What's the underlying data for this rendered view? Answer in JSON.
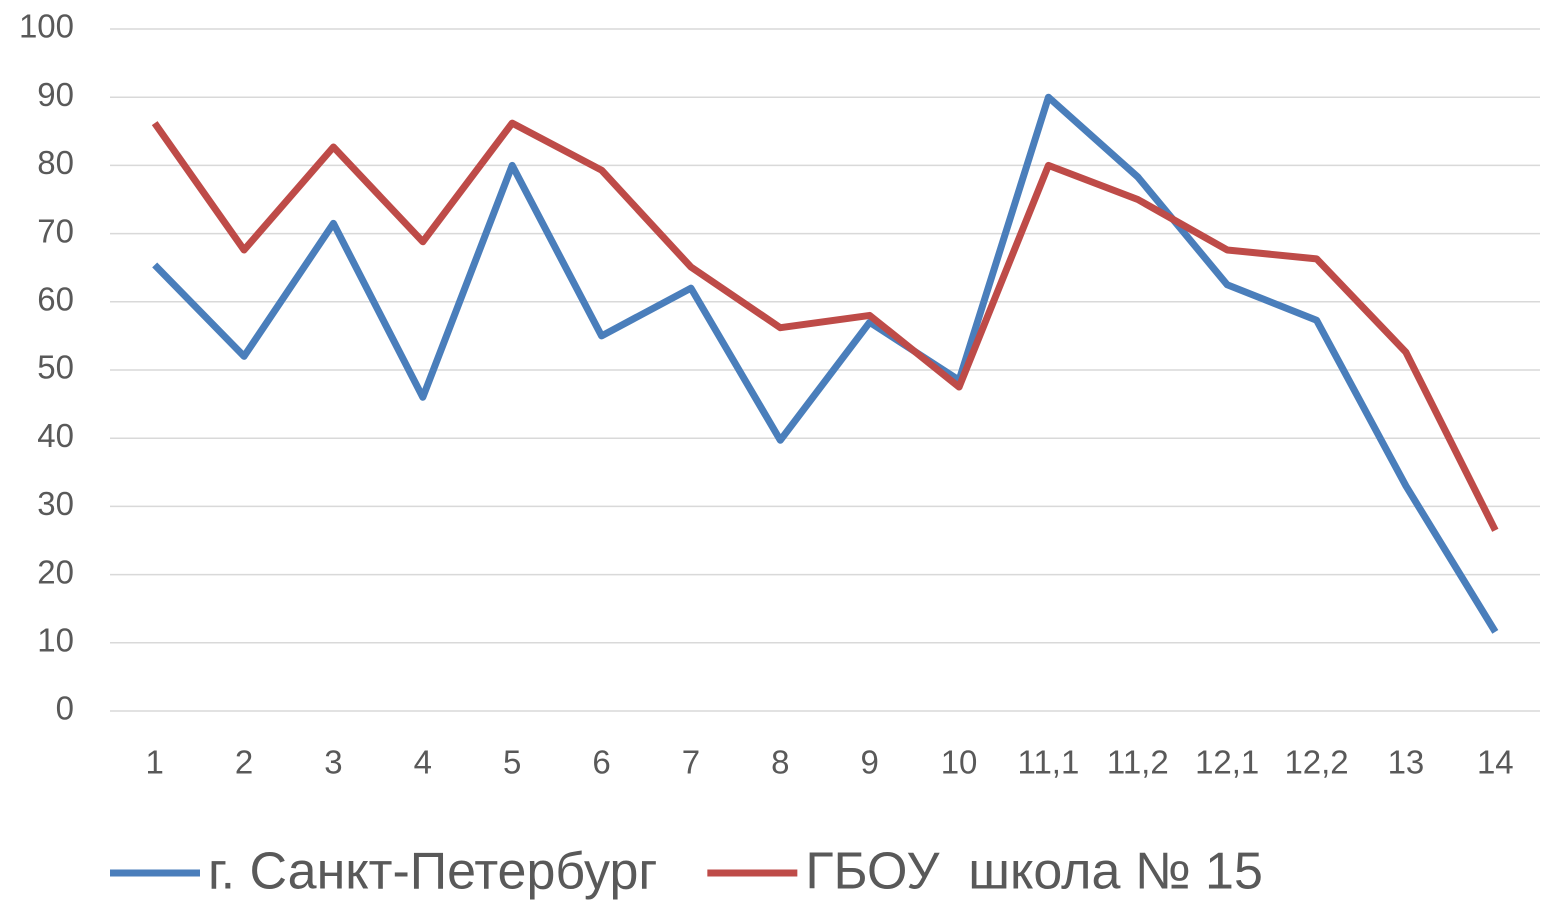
{
  "chart_data": {
    "type": "line",
    "categories": [
      "1",
      "2",
      "3",
      "4",
      "5",
      "6",
      "7",
      "8",
      "9",
      "10",
      "11,1",
      "11,2",
      "12,1",
      "12,2",
      "13",
      "14"
    ],
    "series": [
      {
        "name": "г. Санкт-Петербург",
        "color": "#4a7ebb",
        "values": [
          65.4,
          52,
          71.5,
          46,
          80,
          55,
          62,
          39.7,
          57,
          48.5,
          90,
          78.3,
          62.5,
          57.3,
          33,
          11.6
        ]
      },
      {
        "name": "ГБОУ  школа № 15",
        "color": "#be4b48",
        "values": [
          86.2,
          67.6,
          82.7,
          68.8,
          86.2,
          79.3,
          65.1,
          56.2,
          58,
          47.5,
          80,
          75,
          67.6,
          66.3,
          52.6,
          26.5
        ]
      }
    ],
    "ylim": [
      0,
      100
    ],
    "yticks": [
      0,
      10,
      20,
      30,
      40,
      50,
      60,
      70,
      80,
      90,
      100
    ],
    "grid": true,
    "legend": "bottom"
  }
}
